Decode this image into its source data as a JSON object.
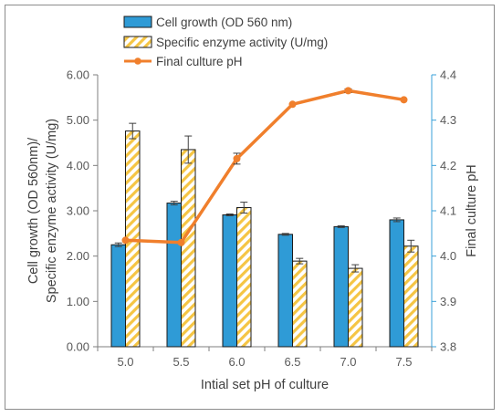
{
  "chart_data": {
    "type": "bar",
    "categories": [
      "5.0",
      "5.5",
      "6.0",
      "6.5",
      "7.0",
      "7.5"
    ],
    "series": [
      {
        "name": "Cell growth (OD 560 nm)",
        "kind": "bar",
        "axis": "left",
        "values": [
          2.25,
          3.17,
          2.91,
          2.48,
          2.65,
          2.8
        ],
        "errors": [
          0.04,
          0.04,
          0.02,
          0.02,
          0.02,
          0.04
        ],
        "color": "#2f9bd6"
      },
      {
        "name": "Specific enzyme activity (U/mg)",
        "kind": "bar",
        "axis": "left",
        "values": [
          4.76,
          4.35,
          3.07,
          1.89,
          1.73,
          2.22
        ],
        "errors": [
          0.17,
          0.3,
          0.12,
          0.06,
          0.08,
          0.13
        ],
        "color": "#f5c544"
      },
      {
        "name": "Final culture pH",
        "kind": "line",
        "axis": "right",
        "values": [
          4.035,
          4.03,
          4.215,
          4.335,
          4.365,
          4.345
        ],
        "errors": [
          0.0,
          0.0,
          0.012,
          0.0,
          0.004,
          0.0
        ],
        "color": "#f07f2c"
      }
    ],
    "xlabel": "Intial set pH of culture",
    "ylabel": [
      "Cell growth (OD 560nm)/",
      "Specific enzyme activity (U/mg)"
    ],
    "y2label": "Final culture pH",
    "ylim": [
      0,
      6
    ],
    "y_ticks": [
      "0.00",
      "1.00",
      "2.00",
      "3.00",
      "4.00",
      "5.00",
      "6.00"
    ],
    "y2lim": [
      3.8,
      4.4
    ],
    "y2_ticks": [
      "3.8",
      "3.9",
      "4.0",
      "4.1",
      "4.2",
      "4.3",
      "4.4"
    ],
    "grid": false,
    "legend": "top-center",
    "right_axis_color": "#3aa0d8"
  }
}
